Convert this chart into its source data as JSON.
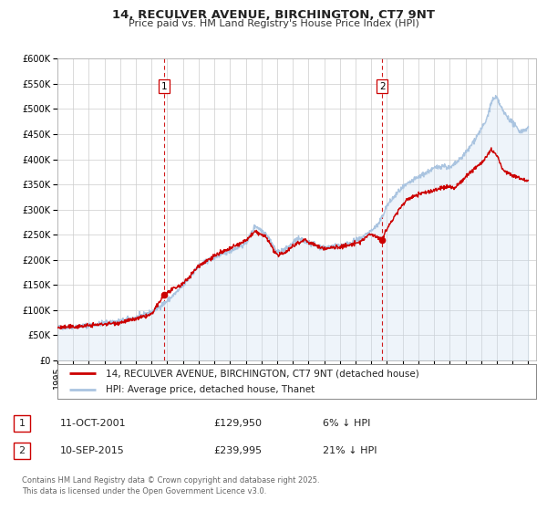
{
  "title": "14, RECULVER AVENUE, BIRCHINGTON, CT7 9NT",
  "subtitle": "Price paid vs. HM Land Registry's House Price Index (HPI)",
  "ylim": [
    0,
    600000
  ],
  "yticks": [
    0,
    50000,
    100000,
    150000,
    200000,
    250000,
    300000,
    350000,
    400000,
    450000,
    500000,
    550000,
    600000
  ],
  "xlim_start": 1995.0,
  "xlim_end": 2025.5,
  "hpi_color": "#aac4e0",
  "hpi_fill_color": "#c8ddf0",
  "price_color": "#cc0000",
  "marker1_date": 2001.786,
  "marker1_value": 129950,
  "marker2_date": 2015.706,
  "marker2_value": 239995,
  "marker1_label": "1",
  "marker2_label": "2",
  "vline_color": "#cc0000",
  "background_color": "#ffffff",
  "grid_color": "#cccccc",
  "legend_label_price": "14, RECULVER AVENUE, BIRCHINGTON, CT7 9NT (detached house)",
  "legend_label_hpi": "HPI: Average price, detached house, Thanet",
  "table_row1": [
    "1",
    "11-OCT-2001",
    "£129,950",
    "6% ↓ HPI"
  ],
  "table_row2": [
    "2",
    "10-SEP-2015",
    "£239,995",
    "21% ↓ HPI"
  ],
  "footer": "Contains HM Land Registry data © Crown copyright and database right 2025.\nThis data is licensed under the Open Government Licence v3.0.",
  "title_fontsize": 9.5,
  "subtitle_fontsize": 8.0,
  "tick_fontsize": 7.0,
  "legend_fontsize": 7.5,
  "table_fontsize": 8.0,
  "footer_fontsize": 6.0
}
